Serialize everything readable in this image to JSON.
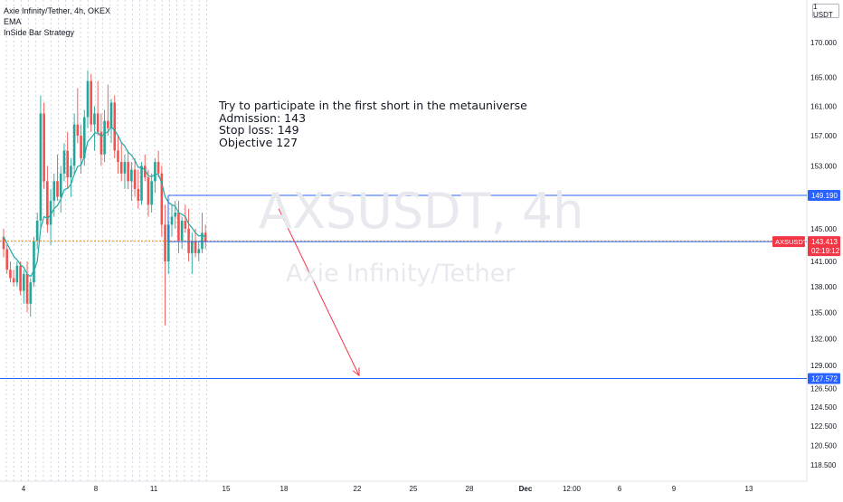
{
  "legend": {
    "symbol": "Axie Infinity/Tether, 4h, OKEX",
    "indicator_1": "EMA",
    "indicator_2": "InSide Bar Strategy"
  },
  "currency_label": "1 USDT",
  "watermark": {
    "ticker": "AXSUSDT, 4h",
    "name": "Axie Infinity/Tether"
  },
  "annotation": {
    "line_1": "Try to participate in the first short in the metauniverse",
    "line_2": "Admission: 143",
    "line_3": "Stop loss: 149",
    "line_4": "Objective 127"
  },
  "colors": {
    "up": "#26a69a",
    "down": "#ef5350",
    "ema": "#1fa9a4",
    "wick_down": "#ef5350",
    "level_line": "#2962ff",
    "price_line": "#ff9800",
    "arrow": "#f23645",
    "axis_text": "#131722",
    "grid": "#a9b6c6",
    "badge_blue": "#2962ff",
    "badge_red": "#f23645"
  },
  "chart_data": {
    "type": "candlestick",
    "title": "Axie Infinity/Tether, 4h, OKEX",
    "y_axis": {
      "scale": "log",
      "range": [
        117,
        178
      ],
      "ticks": [
        170,
        165,
        161,
        157,
        153,
        149,
        145,
        141,
        138,
        135,
        132,
        129,
        126.5,
        124.5,
        122.5,
        120.5,
        118.5
      ]
    },
    "x_axis": {
      "tick_labels": [
        "4",
        "8",
        "11",
        "15",
        "18",
        "22",
        "25",
        "28",
        "Dec",
        "12:00",
        "6",
        "9",
        "13"
      ]
    },
    "candles_ohlc": [
      [
        144.0,
        145.0,
        141.5,
        142.5
      ],
      [
        142.5,
        143.0,
        139.5,
        140.0
      ],
      [
        140.0,
        141.0,
        138.5,
        139.0
      ],
      [
        139.0,
        140.0,
        138.0,
        138.5
      ],
      [
        138.5,
        141.0,
        138.0,
        140.5
      ],
      [
        140.5,
        141.0,
        137.0,
        137.5
      ],
      [
        137.5,
        140.0,
        136.0,
        139.5
      ],
      [
        139.5,
        141.0,
        135.0,
        136.0
      ],
      [
        136.0,
        139.0,
        134.5,
        138.5
      ],
      [
        138.5,
        144.0,
        138.0,
        143.5
      ],
      [
        143.5,
        147.0,
        142.5,
        146.0
      ],
      [
        146.0,
        162.5,
        145.0,
        160.0
      ],
      [
        160.0,
        161.5,
        150.0,
        151.0
      ],
      [
        151.0,
        153.0,
        144.5,
        145.5
      ],
      [
        145.5,
        150.0,
        143.0,
        148.5
      ],
      [
        148.5,
        152.0,
        146.5,
        151.0
      ],
      [
        151.0,
        154.5,
        148.5,
        149.0
      ],
      [
        149.0,
        153.0,
        147.0,
        152.0
      ],
      [
        152.0,
        156.0,
        151.0,
        155.0
      ],
      [
        155.0,
        157.5,
        150.0,
        151.5
      ],
      [
        151.5,
        154.0,
        149.0,
        153.0
      ],
      [
        153.0,
        160.0,
        152.0,
        158.5
      ],
      [
        158.5,
        163.5,
        156.0,
        157.0
      ],
      [
        157.0,
        158.5,
        152.0,
        154.0
      ],
      [
        154.0,
        160.5,
        153.0,
        159.5
      ],
      [
        159.5,
        166.0,
        158.0,
        164.5
      ],
      [
        164.5,
        165.5,
        157.5,
        158.5
      ],
      [
        158.5,
        161.0,
        155.0,
        160.0
      ],
      [
        160.0,
        164.5,
        157.0,
        157.5
      ],
      [
        157.5,
        160.0,
        153.0,
        154.5
      ],
      [
        154.5,
        160.5,
        153.5,
        159.0
      ],
      [
        159.0,
        164.0,
        157.0,
        158.0
      ],
      [
        158.0,
        162.0,
        156.0,
        161.5
      ],
      [
        161.5,
        162.5,
        154.0,
        155.0
      ],
      [
        155.0,
        157.0,
        152.0,
        153.5
      ],
      [
        153.5,
        156.0,
        151.0,
        152.0
      ],
      [
        152.0,
        154.5,
        150.0,
        153.5
      ],
      [
        153.5,
        155.0,
        150.0,
        151.0
      ],
      [
        151.0,
        153.5,
        148.5,
        152.5
      ],
      [
        152.5,
        154.0,
        149.0,
        150.0
      ],
      [
        150.0,
        152.5,
        147.5,
        148.5
      ],
      [
        148.5,
        153.5,
        148.0,
        153.0
      ],
      [
        153.0,
        154.5,
        151.0,
        151.5
      ],
      [
        151.5,
        152.5,
        146.5,
        148.0
      ],
      [
        148.0,
        152.0,
        147.0,
        151.0
      ],
      [
        151.0,
        154.0,
        149.5,
        153.5
      ],
      [
        153.5,
        155.0,
        151.5,
        152.0
      ],
      [
        152.0,
        153.0,
        144.0,
        145.5
      ],
      [
        145.5,
        148.0,
        133.5,
        141.0
      ],
      [
        141.0,
        146.0,
        139.5,
        145.5
      ],
      [
        145.5,
        148.0,
        144.0,
        146.5
      ],
      [
        146.5,
        148.5,
        145.0,
        147.0
      ],
      [
        147.0,
        148.5,
        142.0,
        143.5
      ],
      [
        143.5,
        146.5,
        142.5,
        146.0
      ],
      [
        146.0,
        148.0,
        144.5,
        145.0
      ],
      [
        145.0,
        147.5,
        141.0,
        142.0
      ],
      [
        142.0,
        144.5,
        139.5,
        143.5
      ],
      [
        143.5,
        145.0,
        141.5,
        142.0
      ],
      [
        142.0,
        143.5,
        141.0,
        142.5
      ],
      [
        142.5,
        147.0,
        142.0,
        144.5
      ],
      [
        144.5,
        145.5,
        142.5,
        143.4
      ]
    ],
    "ema_values": [
      144.0,
      143.2,
      142.4,
      141.6,
      141.2,
      140.6,
      140.3,
      139.5,
      139.2,
      139.9,
      141.0,
      145.0,
      146.5,
      146.3,
      146.7,
      147.5,
      147.9,
      148.7,
      149.9,
      150.1,
      150.6,
      151.9,
      152.9,
      153.1,
      154.3,
      156.2,
      156.7,
      157.3,
      157.4,
      156.9,
      157.3,
      157.5,
      158.2,
      157.7,
      157.0,
      156.1,
      155.6,
      154.8,
      154.4,
      153.7,
      152.8,
      152.8,
      152.5,
      151.7,
      151.6,
      151.9,
      151.9,
      150.8,
      149.0,
      148.3,
      148.0,
      147.8,
      147.0,
      146.8,
      146.5,
      145.6,
      145.1,
      144.5,
      144.1,
      144.2,
      144.0
    ],
    "horizontal_levels": [
      {
        "label": "149.190",
        "value": 149.19
      },
      {
        "label": "127.572",
        "value": 127.572
      }
    ],
    "entry_level": {
      "value": 143.413
    },
    "current_price_line": {
      "label": "143.497",
      "value": 143.497
    },
    "last_price_badge": {
      "symbol": "AXSUSDT",
      "price": "143.413",
      "countdown": "02:19:12"
    },
    "arrow": {
      "from": {
        "value": 147.5
      },
      "to": {
        "value": 127.9
      }
    },
    "date_separators": 28
  }
}
